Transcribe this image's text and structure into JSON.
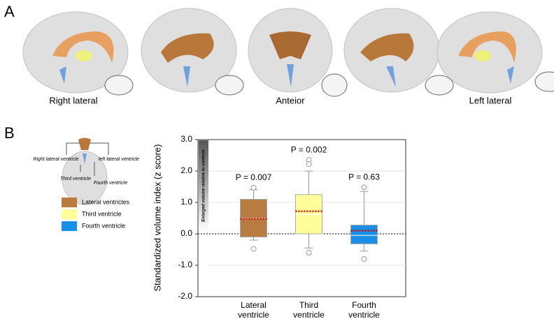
{
  "panel_a": {
    "label": "A",
    "views": [
      "Right lateral",
      "Anteior",
      "Left lateral"
    ]
  },
  "panel_b": {
    "label": "B",
    "diagram_labels": [
      "Right lateral ventricle",
      "left lateral ventricle",
      "Third ventricle",
      "Fourth ventricle"
    ]
  },
  "chart_data": {
    "type": "box",
    "y_label": "Standardized volume index (z score)",
    "gradient_label": "Enlarged volume relative to controls",
    "categories": [
      "Lateral ventricle",
      "Third ventricle",
      "Fourth ventricle"
    ],
    "series": [
      {
        "name": "Lateral ventricles",
        "color": "#b97c40",
        "whisker_low": -0.2,
        "q1": -0.1,
        "median": 0.5,
        "q3": 1.1,
        "whisker_high": 1.4,
        "mean": 0.48,
        "outliers": [
          1.47,
          -0.48
        ]
      },
      {
        "name": "Third ventricle",
        "color": "#ffff99",
        "whisker_low": -0.45,
        "q1": 0.0,
        "median": 0.62,
        "q3": 1.25,
        "whisker_high": 2.0,
        "mean": 0.72,
        "outliers": [
          2.35,
          2.22,
          -0.6
        ]
      },
      {
        "name": "Fourth ventricle",
        "color": "#1a8fe8",
        "whisker_low": -0.55,
        "q1": -0.32,
        "median": -0.05,
        "q3": 0.28,
        "whisker_high": 1.35,
        "mean": 0.1,
        "outliers": [
          1.48,
          -0.8
        ]
      }
    ],
    "annotations": [
      "P = 0.007",
      "P = 0.002",
      "P = 0.63"
    ],
    "ylim": [
      -2,
      3
    ],
    "yticks": [
      {
        "value": -2,
        "label": "-2.0"
      },
      {
        "value": -1,
        "label": "-1.0"
      },
      {
        "value": 0,
        "label": "0.0"
      },
      {
        "value": 1,
        "label": "1.0"
      },
      {
        "value": 2,
        "label": "2.0"
      },
      {
        "value": 3,
        "label": "3.0"
      }
    ],
    "grid": true,
    "mean_color": "#e00000"
  }
}
